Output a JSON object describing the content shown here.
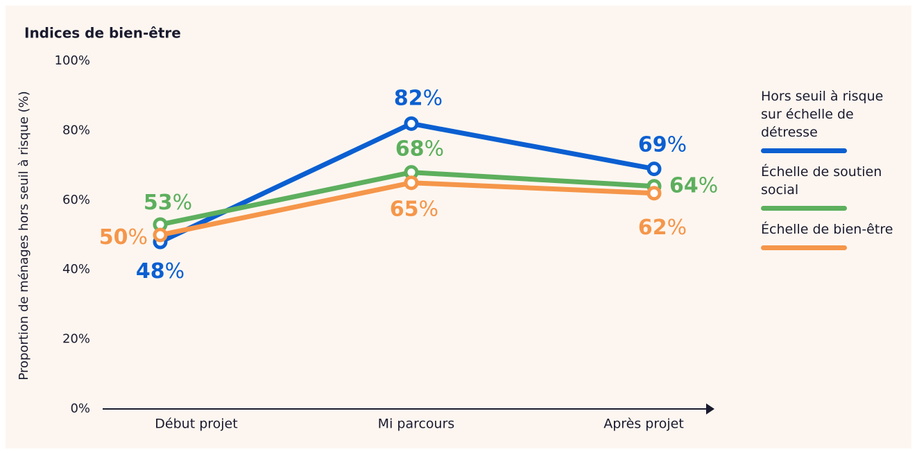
{
  "chart_data": {
    "type": "line",
    "title": "Indices de bien-être",
    "y_label": "Proportion  de ménages hors seuil à risque (%)",
    "categories": [
      "Début projet",
      "Mi parcours",
      "Après projet"
    ],
    "series": [
      {
        "name": "Hors seuil à risque sur échelle de détresse",
        "color": "#0b5fd1",
        "values": [
          48,
          82,
          69
        ],
        "value_labels": [
          "48%",
          "82%",
          "69%"
        ]
      },
      {
        "name": "Échelle de soutien social",
        "color": "#5daf5d",
        "values": [
          53,
          68,
          64
        ],
        "value_labels": [
          "53%",
          "68%",
          "64%"
        ]
      },
      {
        "name": "Échelle de bien-être",
        "color": "#f5964a",
        "values": [
          50,
          65,
          62
        ],
        "value_labels": [
          "50%",
          "65%",
          "62%"
        ]
      }
    ],
    "ylim": [
      0,
      100
    ],
    "yticks": [
      {
        "value": 0,
        "label": "0%"
      },
      {
        "value": 20,
        "label": "20%"
      },
      {
        "value": 40,
        "label": "40%"
      },
      {
        "value": 60,
        "label": "60%"
      },
      {
        "value": 80,
        "label": "80%"
      },
      {
        "value": 100,
        "label": "100%"
      }
    ],
    "legend": "right"
  }
}
